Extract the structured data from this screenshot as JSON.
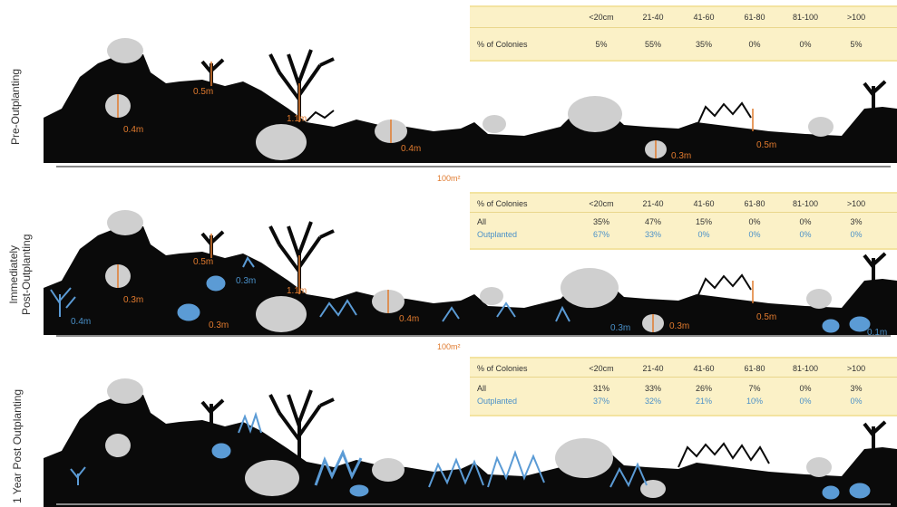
{
  "scale_label": "100m²",
  "panels": [
    {
      "label_lines": [
        "Pre-Outplanting"
      ],
      "table": {
        "headers": [
          "<20cm",
          "21-40",
          "41-60",
          "61-80",
          "81-100",
          ">100"
        ],
        "row_label_header": "",
        "rows": [
          {
            "label": "% of Colonies",
            "values": [
              "5%",
              "55%",
              "35%",
              "0%",
              "0%",
              "5%"
            ],
            "color": "#333333"
          }
        ]
      },
      "measurements": [
        "0.5m",
        "0.4m",
        "1.1m",
        "0.4m",
        "0.3m",
        "0.5m"
      ]
    },
    {
      "label_lines": [
        "Immediately",
        "Post-Outplanting"
      ],
      "table": {
        "headers": [
          "<20cm",
          "21-40",
          "41-60",
          "61-80",
          "81-100",
          ">100"
        ],
        "row_label_header": "% of Colonies",
        "rows": [
          {
            "label": "All",
            "values": [
              "35%",
              "47%",
              "15%",
              "0%",
              "0%",
              "3%"
            ],
            "color": "#333333"
          },
          {
            "label": "Outplanted",
            "values": [
              "67%",
              "33%",
              "0%",
              "0%",
              "0%",
              "0%"
            ],
            "color": "#4a90c8"
          }
        ]
      },
      "measurements": [
        "0.5m",
        "0.3m",
        "0.3m",
        "1.1m",
        "0.4m",
        "0.3m",
        "0.5m"
      ],
      "blue_measurements": [
        "0.4m",
        "0.3m",
        "0.3m",
        "0.1m"
      ]
    },
    {
      "label_lines": [
        "1 Year Post Outplanting"
      ],
      "table": {
        "headers": [
          "<20cm",
          "21-40",
          "41-60",
          "61-80",
          "81-100",
          ">100"
        ],
        "row_label_header": "% of Colonies",
        "rows": [
          {
            "label": "All",
            "values": [
              "31%",
              "33%",
              "26%",
              "7%",
              "0%",
              "3%"
            ],
            "color": "#333333"
          },
          {
            "label": "Outplanted",
            "values": [
              "37%",
              "32%",
              "21%",
              "10%",
              "0%",
              "0%"
            ],
            "color": "#4a90c8"
          }
        ]
      },
      "measurements": []
    }
  ],
  "colors": {
    "reef": "#0a0a0a",
    "brain_coral": "#cfcfcf",
    "outplant": "#5b9bd5",
    "measure": "#e07a2e",
    "table_bg": "#fbf1c7"
  }
}
